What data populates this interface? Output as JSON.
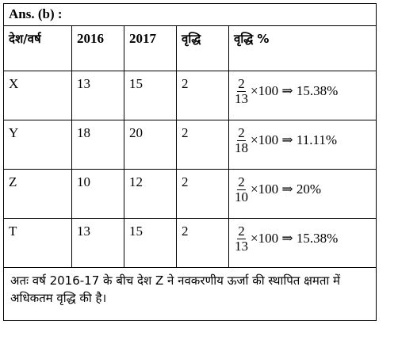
{
  "answer_label": "Ans. (b) :",
  "headers": [
    "देश/वर्ष",
    "2016",
    "2017",
    "वृद्धि",
    "वृद्धि %"
  ],
  "rows": [
    {
      "country": "X",
      "y2016": "13",
      "y2017": "15",
      "growth": "2",
      "frac_num": "2",
      "frac_den": "13",
      "expr": "×100 ⇒ 15.38%"
    },
    {
      "country": "Y",
      "y2016": "18",
      "y2017": "20",
      "growth": "2",
      "frac_num": "2",
      "frac_den": "18",
      "expr": "×100 ⇒ 11.11%"
    },
    {
      "country": "Z",
      "y2016": "10",
      "y2017": "12",
      "growth": "2",
      "frac_num": "2",
      "frac_den": "10",
      "expr": "×100 ⇒ 20%"
    },
    {
      "country": "T",
      "y2016": "13",
      "y2017": "15",
      "growth": "2",
      "frac_num": "2",
      "frac_den": "13",
      "expr": "×100 ⇒ 15.38%"
    }
  ],
  "conclusion": "अतः वर्ष 2016-17 के बीच देश Z ने नवकरणीय ऊर्जा की स्थापित क्षमता में अधिकतम वृद्धि की है।"
}
